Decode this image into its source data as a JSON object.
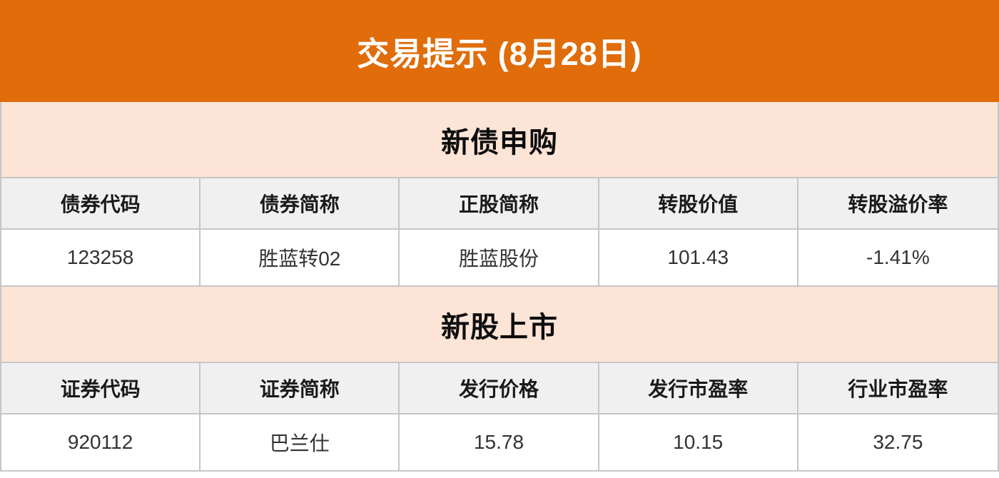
{
  "banner": {
    "title": "交易提示 (8月28日)"
  },
  "chart_data": [
    {
      "type": "table",
      "title": "新债申购",
      "columns": [
        "债券代码",
        "债券简称",
        "正股简称",
        "转股价值",
        "转股溢价率"
      ],
      "rows": [
        [
          "123258",
          "胜蓝转02",
          "胜蓝股份",
          "101.43",
          "-1.41%"
        ]
      ]
    },
    {
      "type": "table",
      "title": "新股上市",
      "columns": [
        "证券代码",
        "证券简称",
        "发行价格",
        "发行市盈率",
        "行业市盈率"
      ],
      "rows": [
        [
          "920112",
          "巴兰仕",
          "15.78",
          "10.15",
          "32.75"
        ]
      ]
    }
  ],
  "colors": {
    "accent_orange": "#e06c0a",
    "section_bg": "#fce4d6",
    "header_bg": "#f0f0f0",
    "border": "#c6c6c6",
    "banner_text": "#ffffff"
  }
}
